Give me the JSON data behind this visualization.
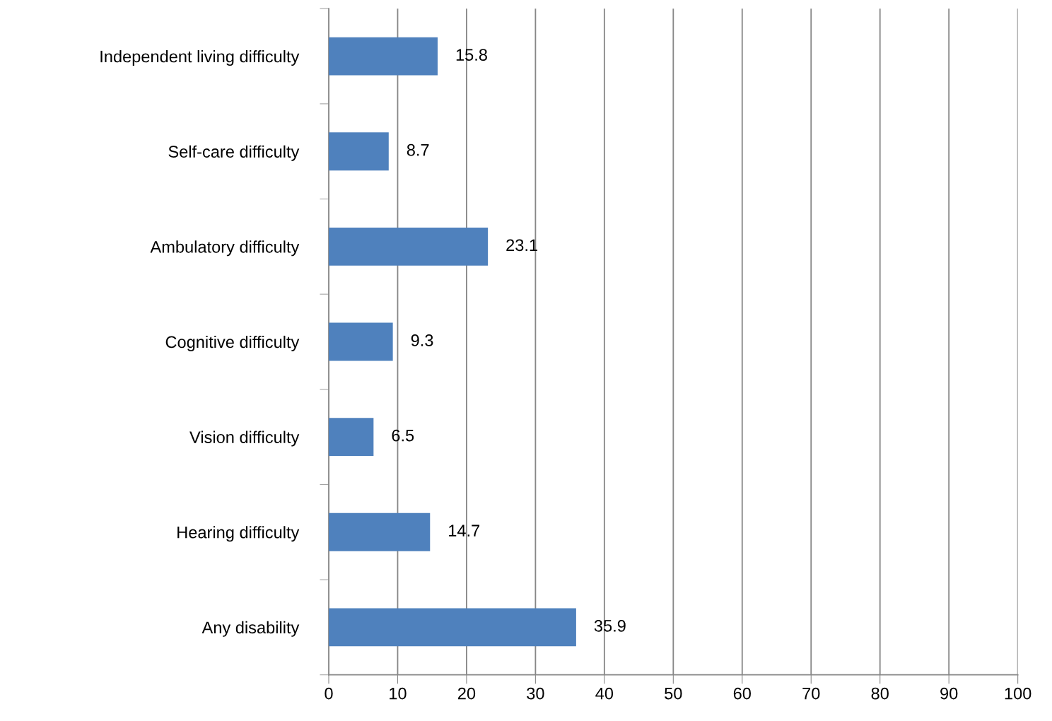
{
  "chart_data": {
    "type": "bar",
    "orientation": "horizontal",
    "categories": [
      "Independent living difficulty",
      "Self-care difficulty",
      "Ambulatory difficulty",
      "Cognitive difficulty",
      "Vision difficulty",
      "Hearing difficulty",
      "Any disability"
    ],
    "values": [
      15.8,
      8.7,
      23.1,
      9.3,
      6.5,
      14.7,
      35.9
    ],
    "color": "#4f81bd",
    "xlim": [
      0,
      100
    ],
    "xticks": [
      0,
      10,
      20,
      30,
      40,
      50,
      60,
      70,
      80,
      90,
      100
    ],
    "grid": "x",
    "data_labels": true
  }
}
